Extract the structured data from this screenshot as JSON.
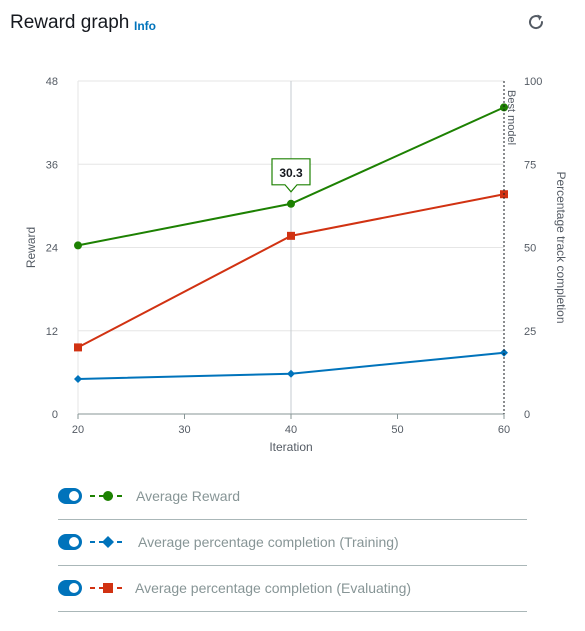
{
  "header": {
    "title": "Reward graph",
    "info_label": "Info",
    "refresh_icon": "refresh-icon"
  },
  "colors": {
    "reward": "#1d8102",
    "training": "#0073bb",
    "evaluating": "#d13212",
    "grid": "#e6e6e6",
    "axis": "#879596",
    "text": "#545b64"
  },
  "legend": [
    {
      "label": "Average Reward",
      "color": "#1d8102",
      "marker": "circle"
    },
    {
      "label": "Average percentage completion (Training)",
      "color": "#0073bb",
      "marker": "diamond"
    },
    {
      "label": "Average percentage completion (Evaluating)",
      "color": "#d13212",
      "marker": "square"
    }
  ],
  "chart_data": {
    "type": "line",
    "xlabel": "Iteration",
    "ylabel": "Reward",
    "y2label": "Percentage track completion",
    "x": [
      20,
      40,
      60
    ],
    "xticks": [
      20,
      30,
      40,
      50,
      60
    ],
    "xlim": [
      20,
      60
    ],
    "ylim": [
      0,
      48
    ],
    "yticks": [
      0,
      12,
      24,
      36,
      48
    ],
    "y2lim": [
      0,
      100
    ],
    "y2ticks": [
      0,
      25,
      50,
      75,
      100
    ],
    "series": [
      {
        "name": "Average Reward",
        "axis": "left",
        "values": [
          24.3,
          30.3,
          44.2
        ]
      },
      {
        "name": "Average percentage completion (Training)",
        "axis": "right",
        "values": [
          10.5,
          12.1,
          18.4
        ]
      },
      {
        "name": "Average percentage completion (Evaluating)",
        "axis": "right",
        "values": [
          20,
          53.5,
          66
        ]
      }
    ],
    "best_model": {
      "x": 60,
      "label": "Best model"
    },
    "hover": {
      "x": 40,
      "label": "30.3"
    },
    "grid": "vertical",
    "legend_position": "bottom"
  }
}
